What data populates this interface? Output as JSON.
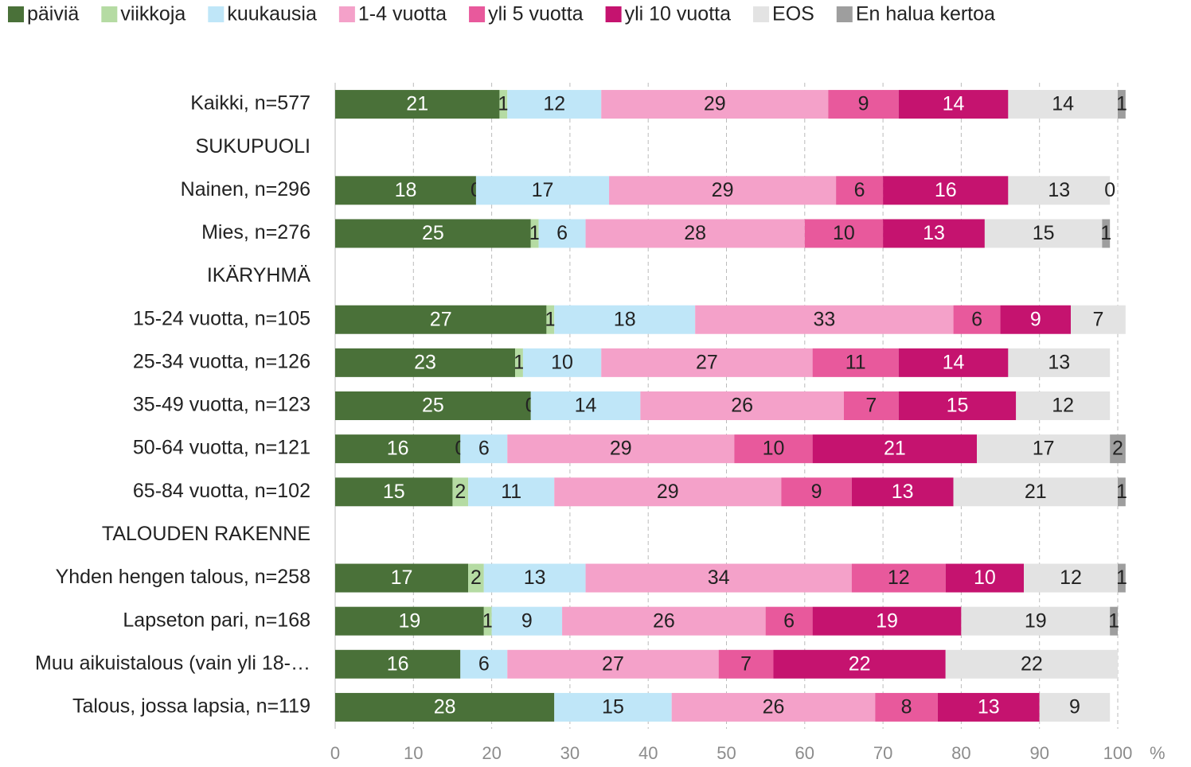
{
  "chart_data": {
    "type": "stacked_bar_horizontal",
    "categories": [
      "Kaikki, n=577",
      "SUKUPUOLI",
      "Nainen, n=296",
      "Mies, n=276",
      "IKÄRYHMÄ",
      "15-24 vuotta, n=105",
      "25-34 vuotta, n=126",
      "35-49 vuotta, n=123",
      "50-64 vuotta, n=121",
      "65-84 vuotta, n=102",
      "TALOUDEN RAKENNE",
      "Yhden hengen talous, n=258",
      "Lapseton pari, n=168",
      "Muu aikuistalous (vain yli 18-…",
      "Talous, jossa lapsia, n=119"
    ],
    "series": [
      {
        "name": "päiviä",
        "color": "#4a7139",
        "values": [
          21,
          null,
          18,
          25,
          null,
          27,
          23,
          25,
          16,
          15,
          null,
          17,
          19,
          16,
          28
        ]
      },
      {
        "name": "viikkoja",
        "color": "#b5dba3",
        "values": [
          1,
          null,
          0,
          1,
          null,
          1,
          1,
          0,
          0,
          2,
          null,
          2,
          1,
          null,
          null
        ]
      },
      {
        "name": "kuukausia",
        "color": "#bfe6f8",
        "values": [
          12,
          null,
          17,
          6,
          null,
          18,
          10,
          14,
          6,
          11,
          null,
          13,
          9,
          6,
          15
        ]
      },
      {
        "name": "1-4 vuotta",
        "color": "#f4a1c9",
        "values": [
          29,
          null,
          29,
          28,
          null,
          33,
          27,
          26,
          29,
          29,
          null,
          34,
          26,
          27,
          26
        ]
      },
      {
        "name": "yli 5 vuotta",
        "color": "#e8599c",
        "values": [
          9,
          null,
          6,
          10,
          null,
          6,
          11,
          7,
          10,
          9,
          null,
          12,
          6,
          7,
          8
        ]
      },
      {
        "name": "yli 10 vuotta",
        "color": "#c5136f",
        "values": [
          14,
          null,
          16,
          13,
          null,
          9,
          14,
          15,
          21,
          13,
          null,
          10,
          19,
          22,
          13
        ]
      },
      {
        "name": "EOS",
        "color": "#e3e3e3",
        "values": [
          14,
          null,
          13,
          15,
          null,
          7,
          13,
          12,
          17,
          21,
          null,
          12,
          19,
          22,
          9
        ]
      },
      {
        "name": "En halua kertoa",
        "color": "#9e9e9e",
        "values": [
          1,
          null,
          0,
          1,
          null,
          null,
          null,
          null,
          2,
          1,
          null,
          1,
          1,
          null,
          null
        ]
      }
    ],
    "xlim": [
      0,
      100
    ],
    "xticks": [
      0,
      10,
      20,
      30,
      40,
      50,
      60,
      70,
      80,
      90,
      100
    ],
    "xlabel": "%",
    "grid": true,
    "legend": "top"
  }
}
